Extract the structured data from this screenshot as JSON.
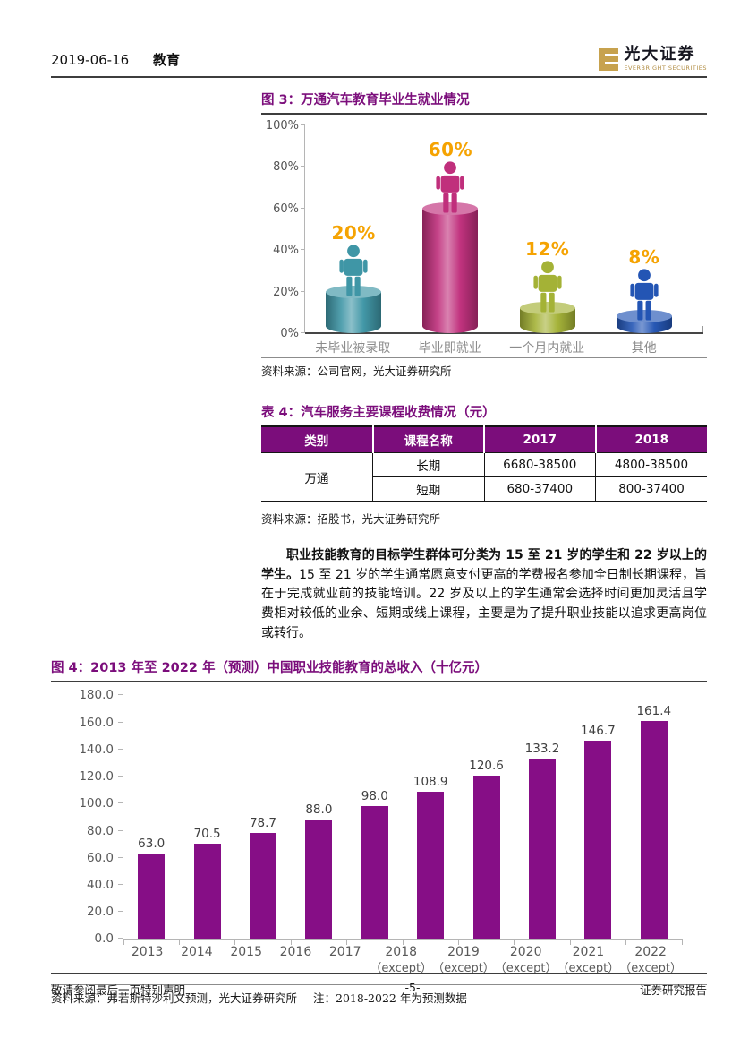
{
  "header": {
    "date": "2019-06-16",
    "category": "教育",
    "brand_cn": "光大证券",
    "brand_en": "EVERBRIGHT SECURITIES"
  },
  "figure3": {
    "title": "图 3：万通汽车教育毕业生就业情况",
    "source": "资料来源：公司官网，光大证券研究所"
  },
  "table4": {
    "title": "表 4：汽车服务主要课程收费情况（元）",
    "headers": [
      "类别",
      "课程名称",
      "2017",
      "2018"
    ],
    "group": "万通",
    "rows": [
      [
        "长期",
        "6680-38500",
        "4800-38500"
      ],
      [
        "短期",
        "680-37400",
        "800-37400"
      ]
    ],
    "source": "资料来源：招股书，光大证券研究所"
  },
  "paragraph": {
    "bold": "职业技能教育的目标学生群体可分类为 15 至 21 岁的学生和 22 岁以上的学生。",
    "rest": "15 至 21 岁的学生通常愿意支付更高的学费报名参加全日制长期课程，旨在于完成就业前的技能培训。22 岁及以上的学生通常会选择时间更加灵活且学费相对较低的业余、短期或线上课程，主要是为了提升职业技能以追求更高岗位或转行。"
  },
  "figure4": {
    "title": "图 4：2013 年至 2022 年（预测）中国职业技能教育的总收入（十亿元）",
    "source": "资料来源：弗若斯特沙利文预测，光大证券研究所",
    "note": "注：2018-2022 年为预测数据"
  },
  "footer": {
    "left": "敬请参阅最后一页特别声明",
    "center": "-5-",
    "right": "证券研究报告"
  },
  "colors": {
    "accent_purple": "#7b0d7b",
    "table_header_bg": "#7b0d7b",
    "percent_label_gold": "#f5a302",
    "revenue_bar_purple": "#860e86",
    "logo_gold": "#c7a24e"
  },
  "chart_data": [
    {
      "type": "bar",
      "title": "万通汽车教育毕业生就业情况",
      "categories": [
        "未毕业被录取",
        "毕业即就业",
        "一个月内就业",
        "其他"
      ],
      "values": [
        20,
        60,
        12,
        8
      ],
      "value_labels": [
        "20%",
        "60%",
        "12%",
        "8%"
      ],
      "bar_colors": [
        "#3f96a6",
        "#c02f7c",
        "#a4b236",
        "#2355b4"
      ],
      "value_label_color": "#f5a302",
      "yticks": [
        "0%",
        "20%",
        "40%",
        "60%",
        "80%",
        "100%"
      ],
      "ylim": [
        0,
        100
      ],
      "xlabel": "",
      "ylabel": "",
      "grid": false,
      "legend": false
    },
    {
      "type": "bar",
      "title": "2013 年至 2022 年（预测）中国职业技能教育的总收入（十亿元）",
      "categories": [
        "2013",
        "2014",
        "2015",
        "2016",
        "2017",
        "2018",
        "2019",
        "2020",
        "2021",
        "2022"
      ],
      "category_notes": [
        "",
        "",
        "",
        "",
        "",
        "（except）",
        "（except）",
        "（except）",
        "（except）",
        "（except）"
      ],
      "values": [
        63.0,
        70.5,
        78.7,
        88.0,
        98.0,
        108.9,
        120.6,
        133.2,
        146.7,
        161.4
      ],
      "value_labels": [
        "63.0",
        "70.5",
        "78.7",
        "88.0",
        "98.0",
        "108.9",
        "120.6",
        "133.2",
        "146.7",
        "161.4"
      ],
      "bar_color": "#860e86",
      "yticks": [
        "0.0",
        "20.0",
        "40.0",
        "60.0",
        "80.0",
        "100.0",
        "120.0",
        "140.0",
        "160.0",
        "180.0"
      ],
      "ylim": [
        0,
        180
      ],
      "xlabel": "",
      "ylabel": "",
      "grid": false,
      "legend": false
    }
  ]
}
